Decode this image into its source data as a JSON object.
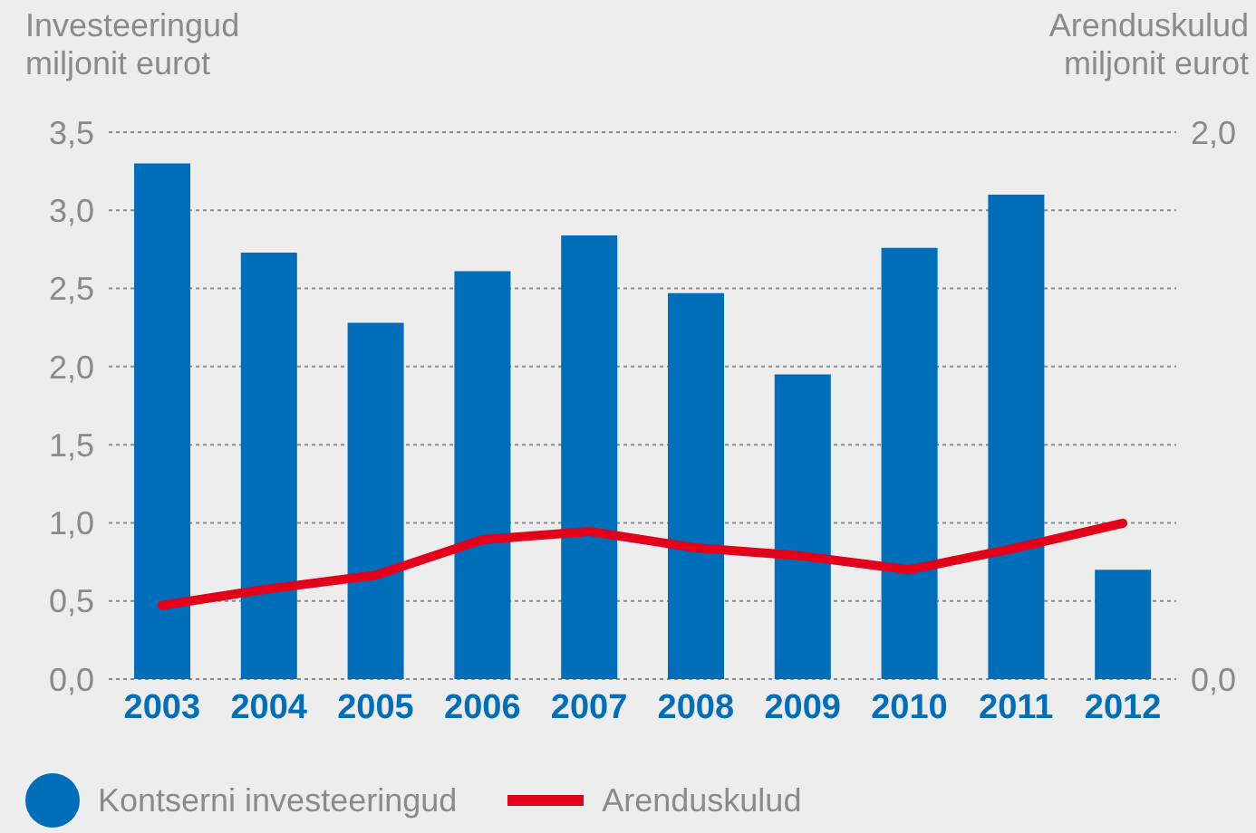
{
  "chart_data": {
    "type": "bar",
    "ylabel": "Investeeringud\nmiljonit eurot",
    "y2label": "Arenduskulud\nmiljonit eurot",
    "categories": [
      "2003",
      "2004",
      "2005",
      "2006",
      "2007",
      "2008",
      "2009",
      "2010",
      "2011",
      "2012"
    ],
    "series": [
      {
        "name": "Kontserni investeeringud",
        "color": "#006eb9",
        "values": [
          3.3,
          2.73,
          2.28,
          2.61,
          2.84,
          2.47,
          1.95,
          2.76,
          3.1,
          0.7
        ]
      },
      {
        "name": "Arenduskulud",
        "type": "line",
        "axis": "y2",
        "color": "#e2001a",
        "values": [
          0.27,
          0.33,
          0.38,
          0.51,
          0.54,
          0.48,
          0.45,
          0.4,
          0.48,
          0.57
        ]
      }
    ],
    "ylim": [
      0,
      3.5
    ],
    "yticks": [
      {
        "value": 0,
        "label": "0,0"
      },
      {
        "value": 0.5,
        "label": "0,5"
      },
      {
        "value": 1,
        "label": "1,0"
      },
      {
        "value": 1.5,
        "label": "1,5"
      },
      {
        "value": 2,
        "label": "2,0"
      },
      {
        "value": 2.5,
        "label": "2,5"
      },
      {
        "value": 3,
        "label": "3,0"
      },
      {
        "value": 3.5,
        "label": "3,5"
      }
    ],
    "y2lim": [
      0,
      2
    ],
    "y2ticks": [
      {
        "value": 0,
        "label": "0,0"
      },
      {
        "value": 2,
        "label": "2,0"
      }
    ],
    "grid": "y",
    "legend": "bottom left"
  }
}
